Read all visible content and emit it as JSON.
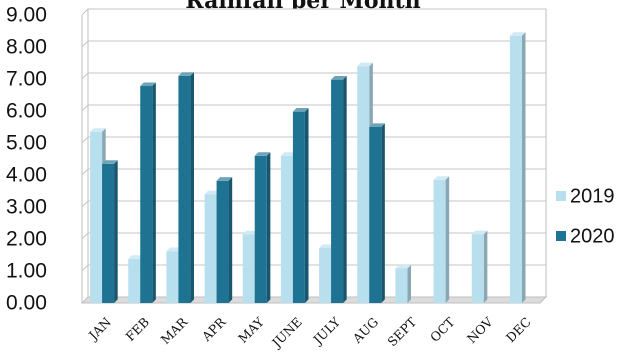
{
  "chart_data": {
    "type": "bar",
    "title": "Rainfall per Month",
    "xlabel": "",
    "ylabel": "",
    "categories": [
      "JAN",
      "FEB",
      "MAR",
      "APR",
      "MAY",
      "JUNE",
      "JULY",
      "AUG",
      "SEPT",
      "OCT",
      "NOV",
      "DEC"
    ],
    "series": [
      {
        "name": "2019",
        "color": "#b8dfee",
        "values": [
          5.35,
          1.38,
          1.62,
          3.4,
          2.15,
          4.6,
          1.72,
          7.4,
          1.08,
          3.85,
          2.15,
          8.35
        ]
      },
      {
        "name": "2020",
        "color": "#1e7393",
        "values": [
          4.35,
          6.78,
          7.1,
          3.82,
          4.6,
          5.98,
          6.98,
          5.5,
          null,
          null,
          null,
          null
        ]
      }
    ],
    "ylim": [
      0,
      9
    ],
    "yticks": [
      "0.00",
      "1.00",
      "2.00",
      "3.00",
      "4.00",
      "5.00",
      "6.00",
      "7.00",
      "8.00",
      "9.00"
    ],
    "grid": true,
    "legend_position": "right",
    "style": "3d-bar"
  }
}
